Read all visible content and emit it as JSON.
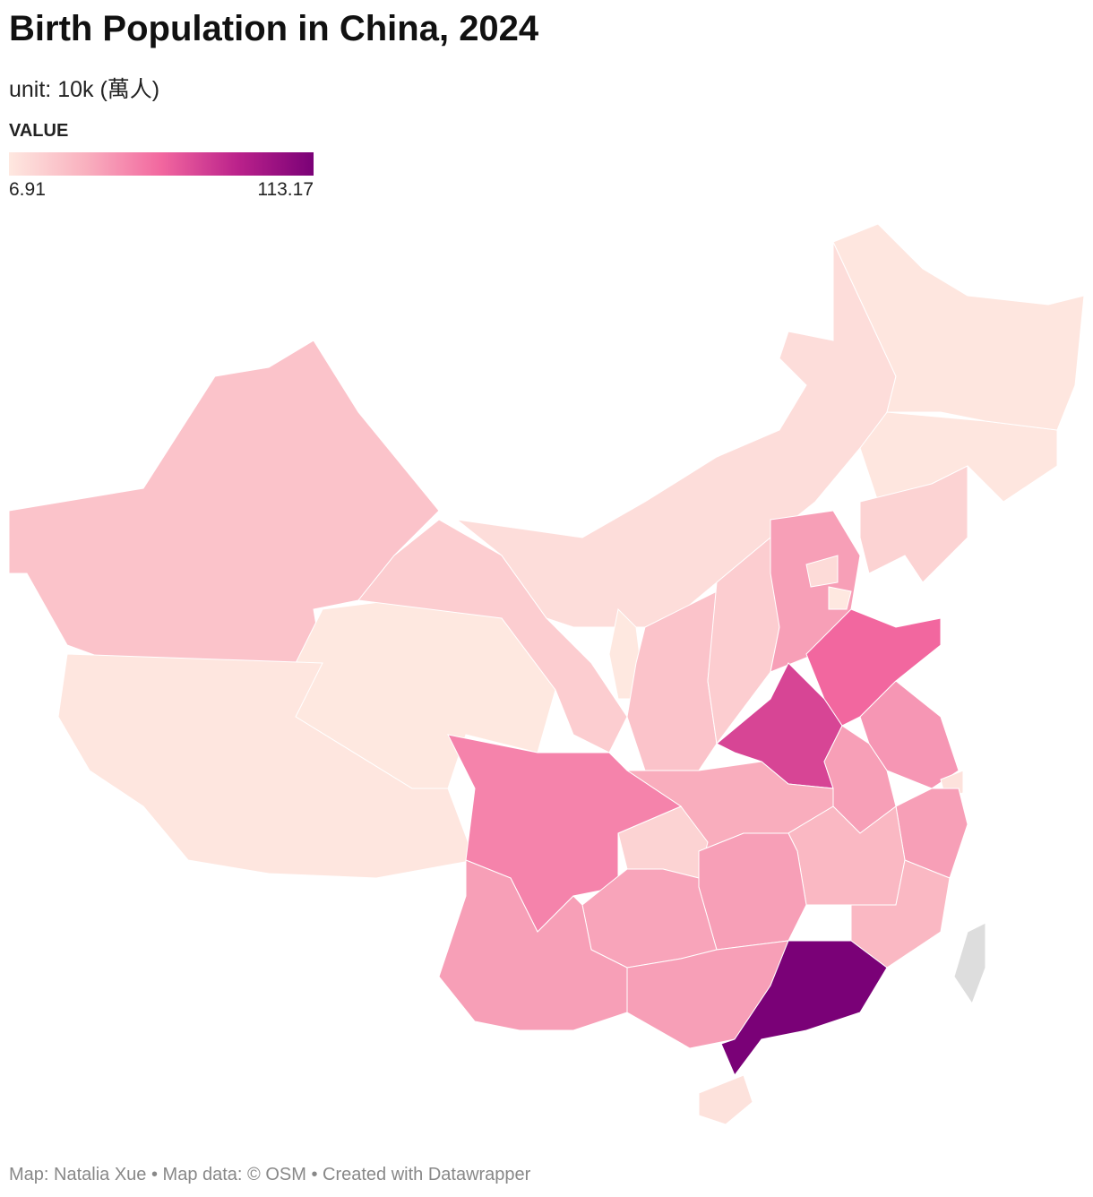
{
  "chart_data": {
    "type": "choropleth",
    "title": "Birth Population in China, 2024",
    "subtitle": "unit: 10k (萬人)",
    "legend": {
      "title": "VALUE",
      "min": 6.91,
      "max": 113.17,
      "colors": [
        "#fee8e0",
        "#f9b1bf",
        "#f2679f",
        "#bb228b",
        "#7a0177"
      ]
    },
    "values": [
      25,
      6.91,
      8,
      20,
      12,
      8,
      8,
      17,
      7,
      25,
      20,
      40,
      13,
      7,
      60,
      73,
      43,
      40,
      10,
      35,
      17,
      50,
      40,
      30,
      40,
      30,
      38,
      40,
      40,
      113.17,
      10
    ],
    "footer": "Map: Natalia Xue • Map data: © OSM  • Created with Datawrapper"
  }
}
